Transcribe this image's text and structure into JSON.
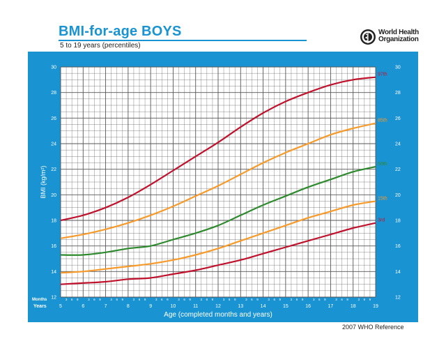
{
  "header": {
    "title": "BMI-for-age  BOYS",
    "subtitle": "5 to 19 years (percentiles)",
    "logo_line1": "World Health",
    "logo_line2": "Organization"
  },
  "footer": {
    "reference": "2007  WHO Reference"
  },
  "colors": {
    "frame": "#1a93d2",
    "grid": "#555555",
    "p97": "#c0122c",
    "p85": "#f79a2a",
    "p50": "#2d8a2d",
    "p15": "#f79a2a",
    "p3": "#c0122c"
  },
  "chart_data": {
    "type": "line",
    "xlabel": "Age (completed months and years)",
    "ylabel": "BMI (kg/m²)",
    "xlim": [
      5,
      19
    ],
    "ylim": [
      12,
      30
    ],
    "x_row_months_label": "Months",
    "x_row_years_label": "Years",
    "month_tick_labels": [
      "3",
      "6",
      "9"
    ],
    "year_tick_labels": [
      "5",
      "6",
      "7",
      "8",
      "9",
      "10",
      "11",
      "12",
      "13",
      "14",
      "15",
      "16",
      "17",
      "18",
      "19"
    ],
    "y_ticks": [
      "12",
      "14",
      "16",
      "18",
      "20",
      "22",
      "24",
      "26",
      "28",
      "30"
    ],
    "grid": true,
    "series": [
      {
        "name": "97th",
        "x": [
          5,
          6,
          7,
          8,
          9,
          10,
          11,
          12,
          13,
          14,
          15,
          16,
          17,
          18,
          19
        ],
        "y": [
          18.0,
          18.4,
          19.0,
          19.8,
          20.8,
          21.9,
          23.0,
          24.1,
          25.3,
          26.4,
          27.3,
          28.0,
          28.6,
          29.0,
          29.2
        ]
      },
      {
        "name": "85th",
        "x": [
          5,
          6,
          7,
          8,
          9,
          10,
          11,
          12,
          13,
          14,
          15,
          16,
          17,
          18,
          19
        ],
        "y": [
          16.6,
          16.9,
          17.3,
          17.8,
          18.4,
          19.1,
          19.9,
          20.7,
          21.6,
          22.5,
          23.3,
          24.0,
          24.7,
          25.2,
          25.6
        ]
      },
      {
        "name": "50th",
        "x": [
          5,
          6,
          7,
          8,
          9,
          10,
          11,
          12,
          13,
          14,
          15,
          16,
          17,
          18,
          19
        ],
        "y": [
          15.3,
          15.3,
          15.5,
          15.8,
          16.0,
          16.5,
          17.0,
          17.6,
          18.4,
          19.2,
          19.9,
          20.6,
          21.2,
          21.8,
          22.2
        ]
      },
      {
        "name": "15th",
        "x": [
          5,
          6,
          7,
          8,
          9,
          10,
          11,
          12,
          13,
          14,
          15,
          16,
          17,
          18,
          19
        ],
        "y": [
          13.9,
          14.0,
          14.2,
          14.4,
          14.6,
          14.9,
          15.3,
          15.8,
          16.4,
          17.0,
          17.6,
          18.2,
          18.7,
          19.2,
          19.5
        ]
      },
      {
        "name": "3rd",
        "x": [
          5,
          6,
          7,
          8,
          9,
          10,
          11,
          12,
          13,
          14,
          15,
          16,
          17,
          18,
          19
        ],
        "y": [
          13.0,
          13.1,
          13.2,
          13.4,
          13.5,
          13.8,
          14.1,
          14.5,
          14.9,
          15.4,
          15.9,
          16.4,
          16.9,
          17.4,
          17.8
        ]
      }
    ]
  }
}
